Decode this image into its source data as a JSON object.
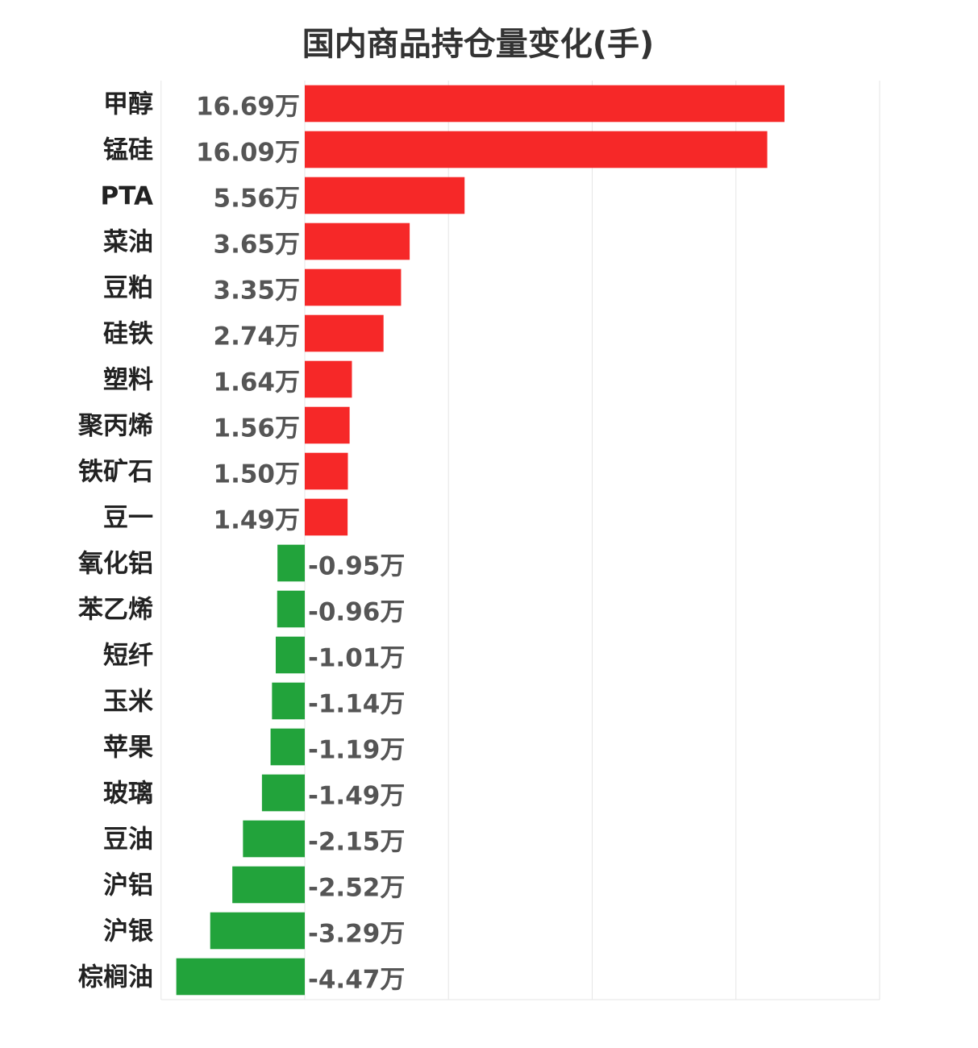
{
  "chart_data": {
    "type": "bar",
    "orientation": "horizontal",
    "title": "国内商品持仓量变化(手)",
    "unit_suffix": "万",
    "categories": [
      "甲醇",
      "锰硅",
      "PTA",
      "菜油",
      "豆粕",
      "硅铁",
      "塑料",
      "聚丙烯",
      "铁矿石",
      "豆一",
      "氧化铝",
      "苯乙烯",
      "短纤",
      "玉米",
      "苹果",
      "玻璃",
      "豆油",
      "沪铝",
      "沪银",
      "棕榈油"
    ],
    "values": [
      16.69,
      16.09,
      5.56,
      3.65,
      3.35,
      2.74,
      1.64,
      1.56,
      1.5,
      1.49,
      -0.95,
      -0.96,
      -1.01,
      -1.14,
      -1.19,
      -1.49,
      -2.15,
      -2.52,
      -3.29,
      -4.47
    ],
    "labels": [
      "16.69万",
      "16.09万",
      "5.56万",
      "3.65万",
      "3.35万",
      "2.74万",
      "1.64万",
      "1.56万",
      "1.50万",
      "1.49万",
      "-0.95万",
      "-0.96万",
      "-1.01万",
      "-1.14万",
      "-1.19万",
      "-1.49万",
      "-2.15万",
      "-2.52万",
      "-3.29万",
      "-4.47万"
    ],
    "xlim": [
      -5,
      20
    ],
    "gridlines": [
      -5,
      0,
      5,
      10,
      15,
      20
    ],
    "grid": true,
    "colors": {
      "positive": "#f62828",
      "negative": "#22a33b",
      "grid": "#e6e6e6",
      "category_text": "#222222",
      "value_text": "#555555"
    }
  }
}
